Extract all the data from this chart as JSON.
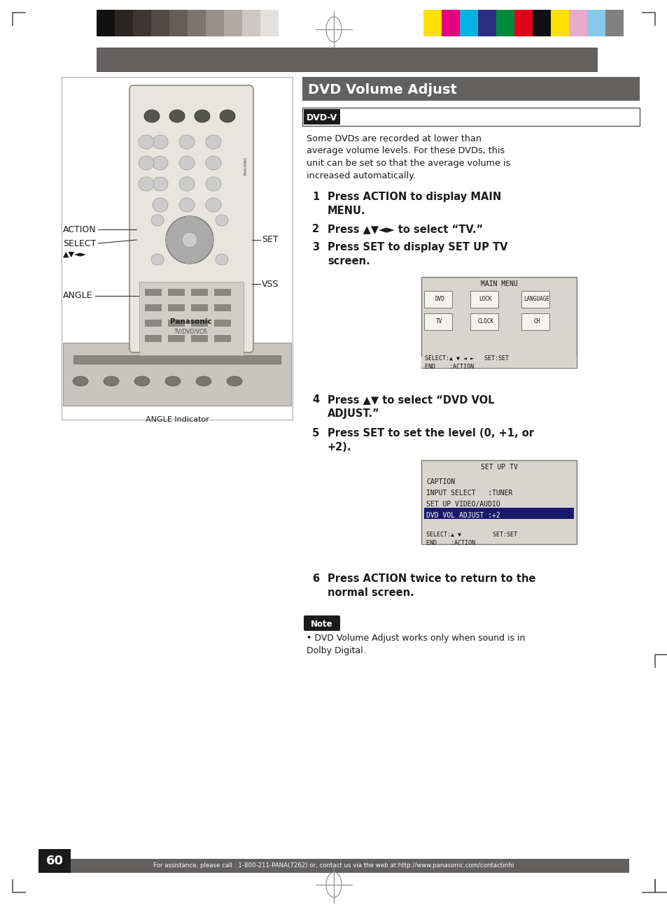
{
  "page_bg": "#ffffff",
  "gray_bar_color": "#636060",
  "color_swatches_left": [
    "#111111",
    "#2a2624",
    "#3d3633",
    "#524a46",
    "#655d59",
    "#7d7470",
    "#988f8b",
    "#b0a8a4",
    "#cbc7c4",
    "#e3e0de",
    "#ffffff"
  ],
  "color_swatches_right": [
    "#ffe000",
    "#e6007e",
    "#00b3e3",
    "#2b2d83",
    "#008b3a",
    "#e3001b",
    "#111111",
    "#ffe000",
    "#e6aacc",
    "#88c8e8",
    "#808080"
  ],
  "title_bg": "#636060",
  "title_text": "DVD Volume Adjust",
  "title_color": "#ffffff",
  "dvdv_label": "DVD-V",
  "body_text_1": "Some DVDs are recorded at lower than\naverage volume levels. For these DVDs, this\nunit can be set so that the average volume is\nincreased automatically.",
  "step1": "Press ACTION to display MAIN\nMENU.",
  "step2": "Press ▲▼◄► to select “TV.”",
  "step3": "Press SET to display SET UP TV\nscreen.",
  "step4": "Press ▲▼ to select “DVD VOL\nADJUST.”",
  "step5": "Press SET to set the level (0, +1, or\n+2).",
  "step6": "Press ACTION twice to return to the\nnormal screen.",
  "note_text": "DVD Volume Adjust works only when sound is in\nDolby Digital.",
  "footer_text": "For assistance, please call : 1-800-211-PANA(7262) or, contact us via the web at:http://www.panasonic.com/contactinfo",
  "page_number": "60",
  "main_menu_title": "MAIN MENU",
  "main_menu_footer": "SELECT:▲ ▼ ◄ ►   SET:SET\nEND    :ACTION",
  "setup_tv_title": "SET UP TV",
  "setup_tv_lines": [
    "CAPTION",
    "INPUT SELECT   :TUNER",
    "SET UP VIDEO/AUDIO",
    "DVD VOL ADJUST :+2"
  ],
  "setup_tv_footer": "SELECT:▲ ▼         SET:SET\nEND    :ACTION"
}
